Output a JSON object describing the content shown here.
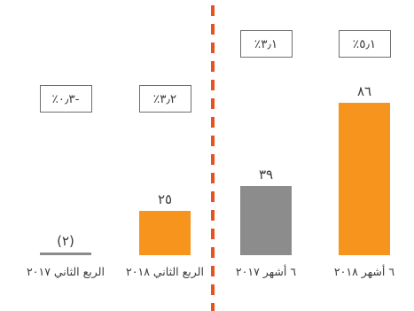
{
  "chart_data": {
    "type": "bar",
    "categories": [
      "الربع الثاني ٢٠١٧",
      "الربع الثاني ٢٠١٨",
      "٦ أشهر ٢٠١٧",
      "٦ أشهر ٢٠١٨"
    ],
    "values": [
      -2,
      25,
      39,
      86
    ],
    "value_labels": [
      "(٢)",
      "٢٥",
      "٣٩",
      "٨٦"
    ],
    "bar_colors": [
      "#8c8c8c",
      "#f7941d",
      "#8c8c8c",
      "#f7941d"
    ],
    "change_labels": [
      "٪٠٫٣-",
      "٪٣٫٢",
      "٪٣٫١",
      "٪٥٫١"
    ],
    "separator_color": "#e8521e",
    "title": "",
    "xlabel": "",
    "ylabel": "",
    "ylim": [
      -5,
      95
    ],
    "grid": false,
    "legend": "none"
  }
}
